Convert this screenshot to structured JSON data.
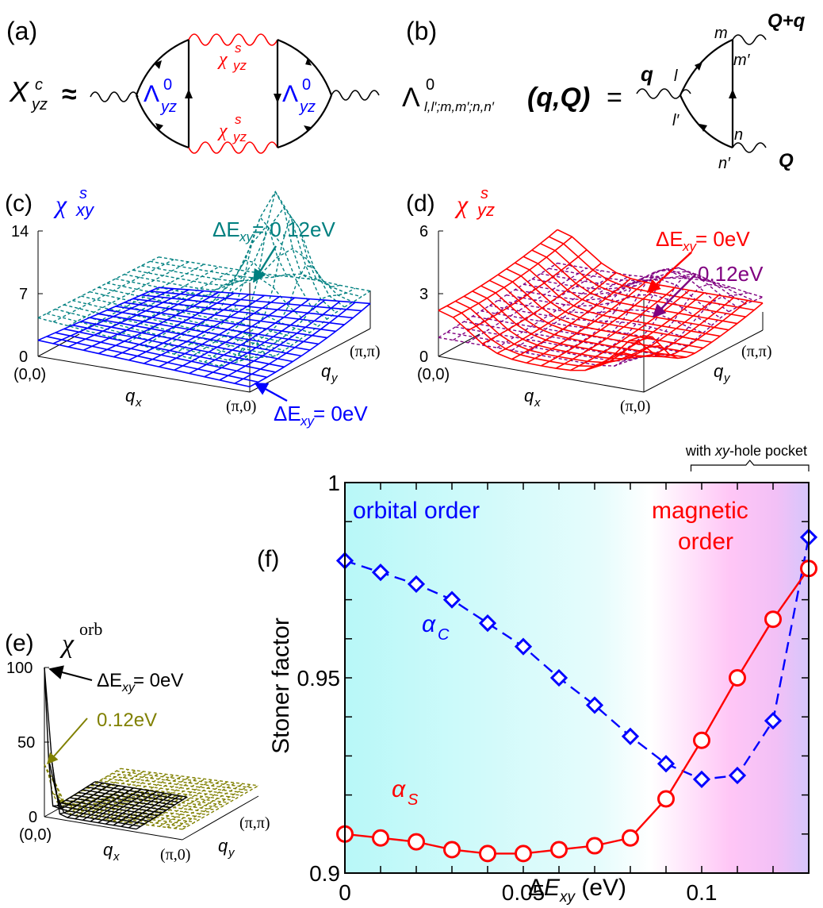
{
  "panels": {
    "a": {
      "label": "(a)",
      "lhs_symbol": "X",
      "lhs_sup": "c",
      "lhs_sub": "yz",
      "approx": "≈",
      "vertex_symbol": "Λ",
      "vertex_sup": "0",
      "vertex_sub": "yz",
      "propagator_symbol": "χ",
      "propagator_sup": "s",
      "propagator_sub": "yz",
      "colors": {
        "vertex": "#0000ff",
        "propagator": "#ff0000",
        "line": "#000000"
      }
    },
    "b": {
      "label": "(b)",
      "lhs_symbol": "Λ",
      "lhs_sup": "0",
      "lhs_sub": "l,l′;m,m′;n,n′",
      "lhs_args": "(q,Q)",
      "equals": "=",
      "q_label": "q",
      "Qq_label": "Q+q",
      "Q_label": "Q",
      "indices": {
        "l": "l",
        "lp": "l′",
        "m": "m",
        "mp": "m′",
        "n": "n",
        "np": "n′"
      }
    },
    "c": {
      "label": "(c)",
      "title_symbol": "χ",
      "title_sup": "s",
      "title_sub": "xy",
      "title_color": "#0000ff",
      "z_ticks": [
        "14",
        "7",
        "0"
      ],
      "corner_00": "(0,0)",
      "corner_pi0": "(π,0)",
      "corner_pipi": "(π,π)",
      "qx": "q",
      "qx_sub": "x",
      "qy": "q",
      "qy_sub": "y",
      "annot_high": {
        "prefix": "ΔE",
        "sub": "xy",
        "value": " = 0.12eV",
        "color": "#008080"
      },
      "annot_low": {
        "prefix": "ΔE",
        "sub": "xy",
        "value": " = 0eV",
        "color": "#0000ff"
      }
    },
    "d": {
      "label": "(d)",
      "title_symbol": "χ",
      "title_sup": "s",
      "title_sub": "yz",
      "title_color": "#ff0000",
      "z_ticks": [
        "6",
        "3",
        "0"
      ],
      "corner_00": "(0,0)",
      "corner_pi0": "(π,0)",
      "corner_pipi": "(π,π)",
      "qx": "q",
      "qx_sub": "x",
      "qy": "q",
      "qy_sub": "y",
      "annot_red": {
        "prefix": "ΔE",
        "sub": "xy",
        "value": " = 0eV",
        "color": "#ff0000"
      },
      "annot_purple": {
        "value": "0.12eV",
        "color": "#800080"
      }
    },
    "e": {
      "label": "(e)",
      "title_symbol": "χ",
      "title_sup": "orb",
      "z_ticks": [
        "100",
        "50",
        "0"
      ],
      "corner_00": "(0,0)",
      "corner_pi0": "(π,0)",
      "corner_pipi": "(π,π)",
      "qx": "q",
      "qx_sub": "x",
      "qy": "q",
      "qy_sub": "y",
      "annot_black": {
        "prefix": "ΔE",
        "sub": "xy",
        "value": " = 0eV",
        "color": "#000000"
      },
      "annot_olive": {
        "value": "0.12eV",
        "color": "#808000"
      }
    },
    "f": {
      "label": "(f)",
      "bracket_label_pre": "with ",
      "bracket_label_it": "xy",
      "bracket_label_post": "-hole pocket",
      "region_left": "orbital order",
      "region_right_1": "magnetic",
      "region_right_2": "order",
      "series_c_label": "α",
      "series_c_sub": "C",
      "series_s_label": "α",
      "series_s_sub": "S"
    }
  },
  "chart_data": {
    "type": "line",
    "title": "",
    "xlabel": "ΔE_xy (eV)",
    "ylabel": "Stoner factor",
    "xlim": [
      0,
      0.13
    ],
    "ylim": [
      0.9,
      1.0
    ],
    "x_ticks": [
      0,
      0.05,
      0.1
    ],
    "x_tick_labels": [
      "0",
      "0.05",
      "0.1"
    ],
    "y_ticks": [
      0.9,
      0.95,
      1.0
    ],
    "y_tick_labels": [
      "0.9",
      "0.95",
      "1"
    ],
    "grid": false,
    "x": [
      0,
      0.01,
      0.02,
      0.03,
      0.04,
      0.05,
      0.06,
      0.07,
      0.08,
      0.09,
      0.1,
      0.11,
      0.12,
      0.13
    ],
    "series": [
      {
        "name": "α_C",
        "marker": "diamond",
        "line": "dashed",
        "color": "#0000ff",
        "values": [
          0.98,
          0.977,
          0.974,
          0.97,
          0.964,
          0.958,
          0.95,
          0.943,
          0.935,
          0.928,
          0.924,
          0.925,
          0.939,
          0.986
        ]
      },
      {
        "name": "α_S",
        "marker": "circle",
        "line": "solid",
        "color": "#ff0000",
        "values": [
          0.91,
          0.909,
          0.908,
          0.906,
          0.905,
          0.905,
          0.906,
          0.907,
          0.909,
          0.919,
          0.934,
          0.95,
          0.965,
          0.978
        ]
      }
    ],
    "background_regions": [
      {
        "name": "orbital order",
        "color": "#b8f8f8"
      },
      {
        "name": "magnetic order",
        "color": "#ffbdf6"
      },
      {
        "name": "edge",
        "color": "#d8c4ff"
      }
    ],
    "annotations": [
      "orbital order",
      "magnetic order",
      "with xy-hole pocket",
      "α_C",
      "α_S"
    ]
  }
}
